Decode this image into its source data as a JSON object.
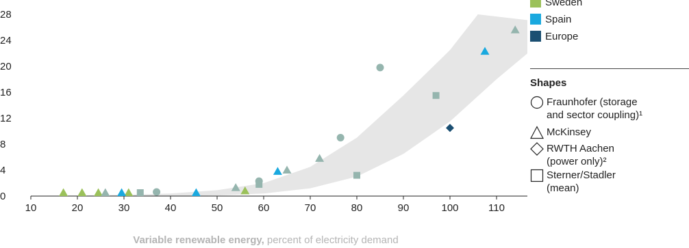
{
  "chart_data": {
    "type": "scatter",
    "xlabel_bold": "Variable renewable energy,",
    "xlabel_rest": " percent of electricity demand",
    "xlim": [
      10,
      125
    ],
    "ylim": [
      0,
      28
    ],
    "x_ticks": [
      10,
      20,
      30,
      40,
      50,
      60,
      70,
      80,
      90,
      100,
      110,
      120
    ],
    "y_ticks": [
      0,
      4,
      8,
      12,
      16,
      20,
      24,
      28
    ],
    "band": {
      "upper": [
        [
          10,
          0.05
        ],
        [
          20,
          0.1
        ],
        [
          30,
          0.2
        ],
        [
          40,
          0.4
        ],
        [
          50,
          0.9
        ],
        [
          60,
          2.0
        ],
        [
          70,
          4.5
        ],
        [
          80,
          9.0
        ],
        [
          90,
          15.5
        ],
        [
          100,
          22.5
        ],
        [
          106,
          28
        ]
      ],
      "lower": [
        [
          20,
          0
        ],
        [
          40,
          0
        ],
        [
          50,
          0.1
        ],
        [
          60,
          0.4
        ],
        [
          70,
          1.2
        ],
        [
          80,
          3.0
        ],
        [
          90,
          6.5
        ],
        [
          100,
          11.5
        ],
        [
          110,
          18.0
        ],
        [
          120,
          24.0
        ],
        [
          124,
          26.5
        ]
      ]
    },
    "series": [
      {
        "name": "Sweden",
        "color": "#9bc15a",
        "shape": "triangle",
        "points": [
          [
            17,
            0
          ],
          [
            21,
            0.1
          ],
          [
            24.5,
            0.2
          ],
          [
            31,
            0.1
          ],
          [
            56,
            0.8
          ]
        ]
      },
      {
        "name": "Spain",
        "color": "#1aa9df",
        "shape": "triangle",
        "points": [
          [
            29.5,
            0
          ],
          [
            45.5,
            0.4
          ],
          [
            63,
            3.8
          ],
          [
            107.5,
            22.3
          ]
        ]
      },
      {
        "name": "Europe",
        "color": "#1b4f72",
        "shape": "diamond",
        "points": [
          [
            100,
            10.5
          ]
        ]
      },
      {
        "name": "",
        "color": "#95b5ae",
        "shape": "triangle",
        "points": [
          [
            26,
            0
          ],
          [
            54,
            1.3
          ],
          [
            65,
            4.0
          ],
          [
            72,
            5.8
          ],
          [
            114,
            25.6
          ]
        ]
      },
      {
        "name": "",
        "color": "#95b5ae",
        "shape": "circle",
        "points": [
          [
            37,
            0.6
          ],
          [
            59,
            2.3
          ],
          [
            76.5,
            9.0
          ],
          [
            85,
            19.8
          ]
        ]
      },
      {
        "name": "",
        "color": "#95b5ae",
        "shape": "square",
        "points": [
          [
            33.5,
            0.5
          ],
          [
            59,
            1.8
          ],
          [
            80,
            3.2
          ],
          [
            97,
            15.5
          ]
        ]
      }
    ]
  },
  "legend": {
    "countries": [
      {
        "label": "Sweden",
        "color": "#9bc15a"
      },
      {
        "label": "Spain",
        "color": "#1aa9df"
      },
      {
        "label": "Europe",
        "color": "#1b4f72"
      }
    ],
    "shapes_title": "Shapes",
    "shapes": [
      {
        "icon": "circle",
        "label": "Fraunhofer (storage\nand sector coupling)¹"
      },
      {
        "icon": "triangle",
        "label": "McKinsey"
      },
      {
        "icon": "diamond",
        "label": "RWTH Aachen\n(power only)²"
      },
      {
        "icon": "square",
        "label": "Sterner/Stadler\n(mean)"
      }
    ]
  }
}
